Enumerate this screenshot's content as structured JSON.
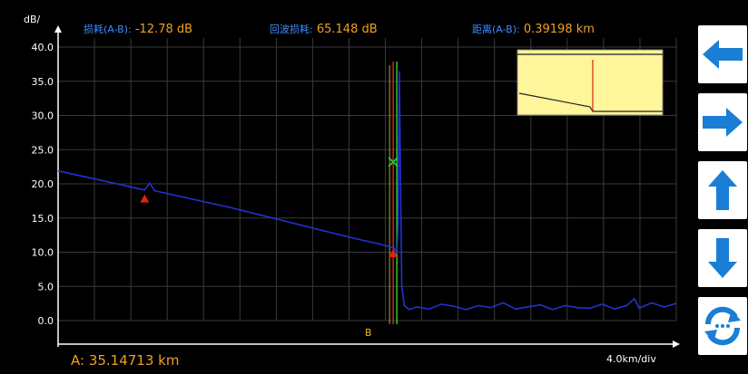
{
  "header": {
    "loss_label": "损耗(A-B):",
    "loss_value": "-12.78 dB",
    "return_loss_label": "回波损耗:",
    "return_loss_value": "65.148 dB",
    "distance_label": "距离(A-B):",
    "distance_value": "0.39198 km"
  },
  "chart_data": {
    "type": "line",
    "ylabel": "dB/",
    "y_ticks": [
      "40.0",
      "35.0",
      "30.0",
      "25.0",
      "20.0",
      "15.0",
      "10.0",
      "5.0",
      "0.0"
    ],
    "ylim": [
      0,
      40
    ],
    "x_scale": "4.0km/div",
    "grid": true,
    "series": [
      {
        "color": "#2233cc",
        "points_db": [
          [
            0.0,
            21.9
          ],
          [
            1.0,
            21.1
          ],
          [
            2.0,
            20.3
          ],
          [
            3.0,
            19.5
          ],
          [
            3.5,
            19.1
          ],
          [
            3.7,
            20.1
          ],
          [
            3.9,
            19.0
          ],
          [
            5.0,
            18.1
          ],
          [
            6.0,
            17.3
          ],
          [
            7.0,
            16.5
          ],
          [
            8.0,
            15.6
          ],
          [
            9.0,
            14.7
          ],
          [
            10.0,
            13.8
          ],
          [
            11.0,
            12.9
          ],
          [
            12.0,
            12.0
          ],
          [
            13.0,
            11.2
          ],
          [
            13.6,
            10.6
          ],
          [
            13.7,
            9.8
          ],
          [
            13.75,
            14.0
          ],
          [
            13.8,
            36.5
          ],
          [
            13.85,
            20.0
          ],
          [
            13.9,
            5.0
          ],
          [
            14.0,
            2.2
          ],
          [
            14.2,
            1.6
          ],
          [
            14.5,
            2.0
          ],
          [
            15.0,
            1.7
          ],
          [
            15.5,
            2.4
          ],
          [
            16.0,
            2.1
          ],
          [
            16.5,
            1.6
          ],
          [
            17.0,
            2.2
          ],
          [
            17.5,
            1.9
          ],
          [
            18.0,
            2.6
          ],
          [
            18.5,
            1.7
          ],
          [
            19.0,
            2.0
          ],
          [
            19.5,
            2.3
          ],
          [
            20.0,
            1.6
          ],
          [
            20.5,
            2.2
          ],
          [
            21.0,
            1.9
          ],
          [
            21.5,
            1.8
          ],
          [
            22.0,
            2.4
          ],
          [
            22.5,
            1.7
          ],
          [
            23.0,
            2.2
          ],
          [
            23.3,
            3.2
          ],
          [
            23.5,
            1.8
          ],
          [
            24.0,
            2.6
          ],
          [
            24.5,
            2.0
          ],
          [
            25.0,
            2.5
          ]
        ]
      }
    ],
    "cursors": {
      "a_color": "#dd2211",
      "b_color": "#22cc33",
      "b_label": "B"
    },
    "markers": [
      {
        "type": "triangle",
        "color": "#dd2211",
        "x_div": 3.5,
        "y_db": 17.8
      },
      {
        "type": "triangle",
        "color": "#dd2211",
        "x_div": 13.55,
        "y_db": 9.8
      },
      {
        "type": "cross",
        "color": "#22cc33",
        "x_div": 13.55,
        "y_db": 23.2
      }
    ],
    "overview": {
      "background": "#fff59a",
      "trace_color": "#222222",
      "spike_color": "#dd2211"
    }
  },
  "footer": {
    "distance_a": "A: 35.14713 km",
    "scale": "4.0km/div"
  },
  "side_buttons": [
    {
      "name": "left-arrow",
      "icon": "arrow-left-icon"
    },
    {
      "name": "right-arrow",
      "icon": "arrow-right-icon"
    },
    {
      "name": "up-arrow",
      "icon": "arrow-up-icon"
    },
    {
      "name": "down-arrow",
      "icon": "arrow-down-icon"
    },
    {
      "name": "refresh",
      "icon": "refresh-icon"
    }
  ],
  "colors": {
    "accent": "#1a7ed6",
    "label_blue": "#3d8cff",
    "value_orange": "#f0a020"
  }
}
